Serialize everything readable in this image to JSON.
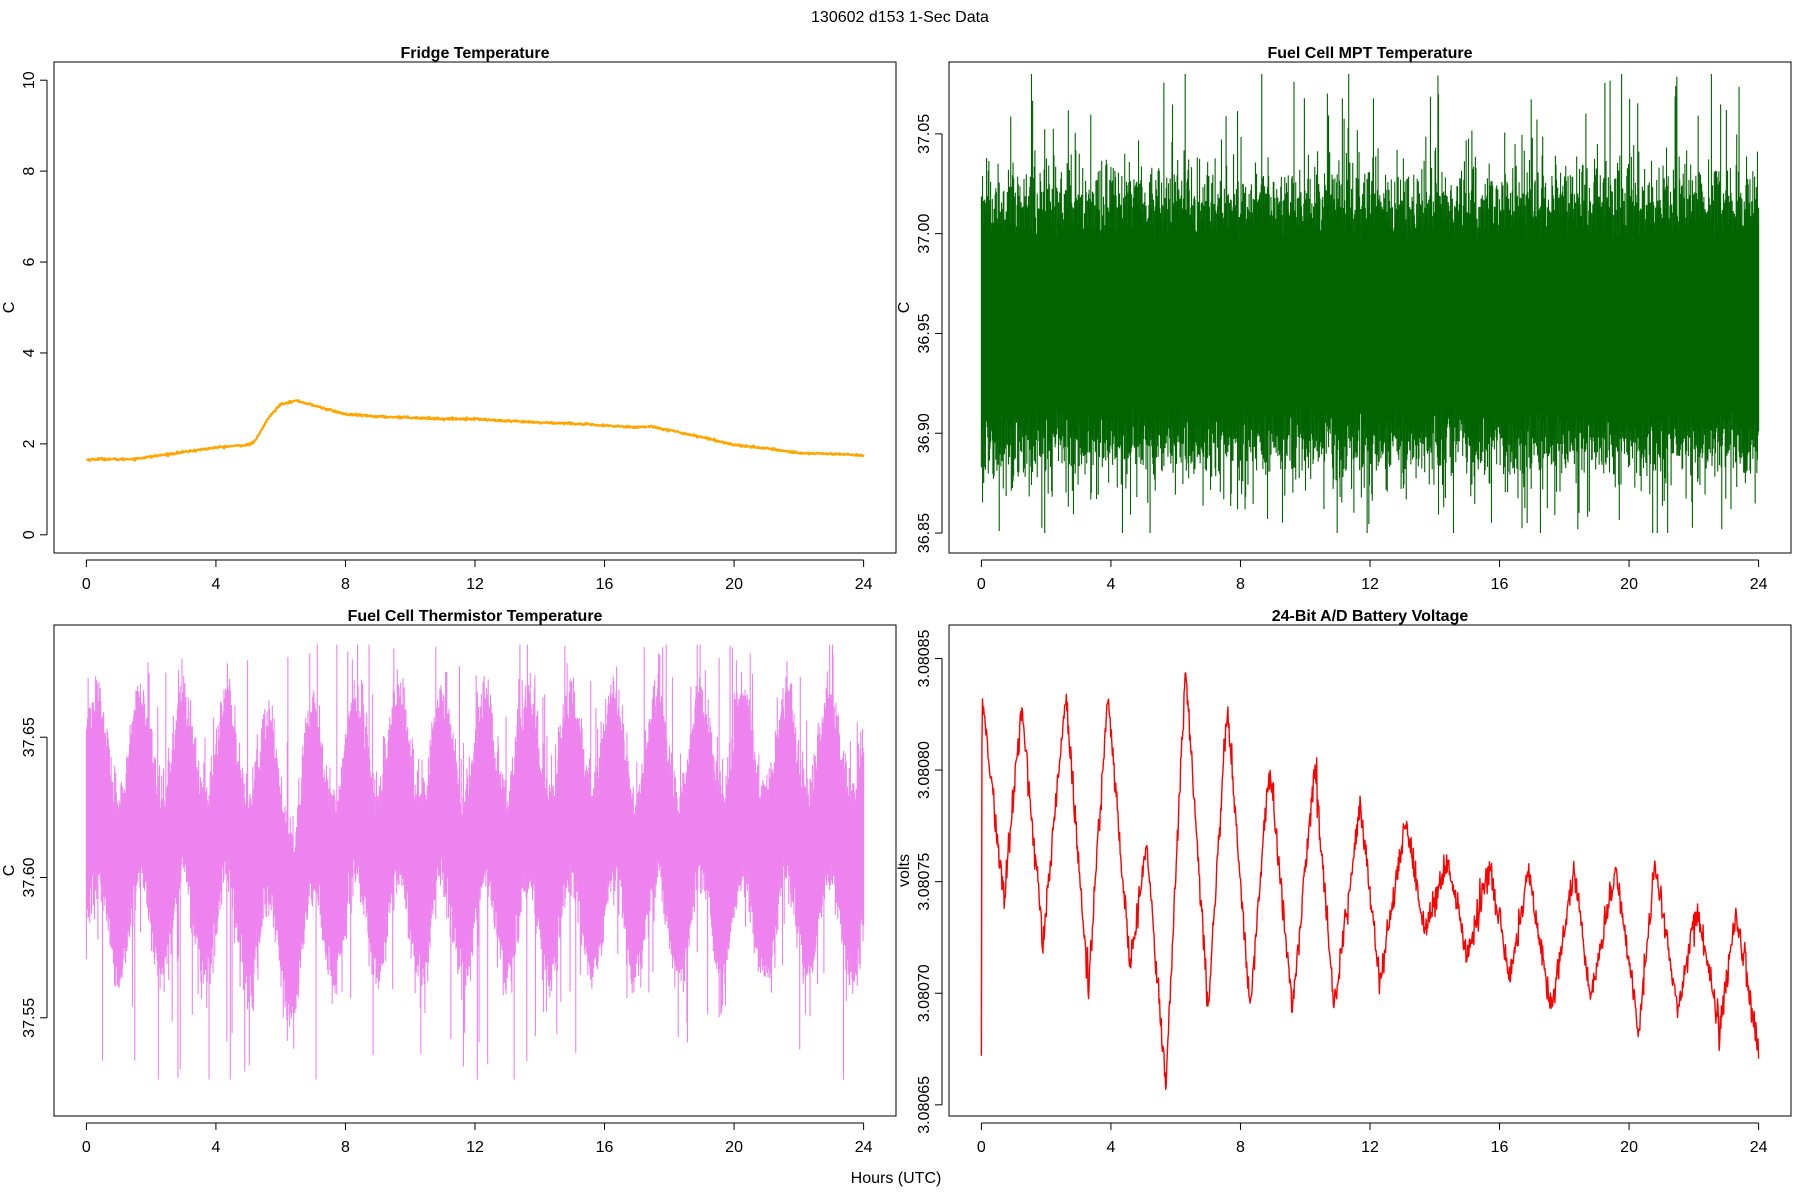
{
  "figure": {
    "title": "130602   d153   1-Sec Data",
    "shared_xlabel": "Hours (UTC)"
  },
  "chart_data": [
    {
      "id": "fridge",
      "type": "line",
      "title": "Fridge Temperature",
      "xlabel": "",
      "ylabel": "C",
      "color": "#ffa500",
      "noise": 0.012,
      "xlim": [
        -1,
        25
      ],
      "ylim": [
        -0.4,
        10.4
      ],
      "xticks": [
        0,
        4,
        8,
        12,
        16,
        20,
        24
      ],
      "yticks": [
        0,
        2,
        4,
        6,
        8,
        10
      ],
      "ytick_labels": [
        "0",
        "2",
        "4",
        "6",
        "8",
        "10"
      ],
      "series": [
        {
          "name": "Fridge Temperature",
          "x": [
            0,
            0.5,
            1,
            1.5,
            2,
            3,
            4,
            5,
            5.2,
            5.6,
            6,
            6.5,
            7,
            8,
            9,
            10,
            11,
            12,
            13,
            14,
            15,
            16,
            17,
            17.5,
            18,
            19,
            20,
            21,
            22,
            23,
            24
          ],
          "y": [
            1.65,
            1.67,
            1.66,
            1.67,
            1.72,
            1.82,
            1.92,
            1.98,
            2.05,
            2.55,
            2.88,
            2.95,
            2.85,
            2.65,
            2.6,
            2.58,
            2.55,
            2.55,
            2.5,
            2.47,
            2.45,
            2.4,
            2.37,
            2.38,
            2.3,
            2.15,
            1.98,
            1.9,
            1.8,
            1.78,
            1.75
          ]
        }
      ]
    },
    {
      "id": "mpt",
      "type": "line",
      "title": "Fuel Cell MPT Temperature",
      "xlabel": "",
      "ylabel": "C",
      "color": "#006400",
      "xlim": [
        -1,
        25
      ],
      "ylim": [
        36.84,
        37.086
      ],
      "xticks": [
        0,
        4,
        8,
        12,
        16,
        20,
        24
      ],
      "yticks": [
        36.85,
        36.9,
        36.95,
        37.0,
        37.05
      ],
      "ytick_labels": [
        "36.85",
        "36.90",
        "36.95",
        "37.00",
        "37.05"
      ],
      "band": {
        "center": 36.955,
        "core_half_width": 0.055,
        "spike_min": 36.85,
        "spike_max": 37.08
      }
    },
    {
      "id": "thermistor",
      "type": "line",
      "title": "Fuel Cell Thermistor Temperature",
      "xlabel": "",
      "ylabel": "C",
      "color": "#ee82ee",
      "xlim": [
        -1,
        25
      ],
      "ylim": [
        37.515,
        37.69
      ],
      "xticks": [
        0,
        4,
        8,
        12,
        16,
        20,
        24
      ],
      "yticks": [
        37.55,
        37.6,
        37.65
      ],
      "ytick_labels": [
        "37.55",
        "37.60",
        "37.65"
      ],
      "band": {
        "mean": 37.615,
        "cycle_hours": 1.33,
        "osc_amplitude": 0.018,
        "core_half_width": 0.028,
        "spike_min": 37.528,
        "spike_max": 37.683,
        "dip_hour": 6.2,
        "dip_depth": 0.015
      }
    },
    {
      "id": "battery",
      "type": "line",
      "title": "24-Bit A/D Battery Voltage",
      "xlabel": "",
      "ylabel": "volts",
      "color": "#ff0000",
      "noise": 3.5e-06,
      "xlim": [
        -1,
        25
      ],
      "ylim": [
        3.080645,
        3.080865
      ],
      "xticks": [
        0,
        4,
        8,
        12,
        16,
        20,
        24
      ],
      "yticks": [
        3.08065,
        3.0807,
        3.08075,
        3.0808,
        3.08085
      ],
      "ytick_labels": [
        "3.08065",
        "3.08070",
        "3.08075",
        "3.08080",
        "3.08085"
      ],
      "series": [
        {
          "name": "Battery Voltage",
          "x": [
            0,
            0.02,
            0.7,
            1.25,
            1.9,
            2.6,
            3.3,
            3.9,
            4.6,
            5.1,
            5.7,
            6.3,
            7.0,
            7.6,
            8.3,
            8.9,
            9.6,
            10.3,
            10.9,
            11.7,
            12.3,
            13.1,
            13.7,
            14.4,
            15.0,
            15.7,
            16.3,
            16.9,
            17.6,
            18.3,
            18.8,
            19.6,
            20.3,
            20.8,
            21.5,
            22.1,
            22.8,
            23.3,
            24.0
          ],
          "y": [
            3.080672,
            3.080834,
            3.080741,
            3.080829,
            3.080721,
            3.080833,
            3.080704,
            3.080832,
            3.080712,
            3.080767,
            3.080657,
            3.080847,
            3.080693,
            3.080828,
            3.080693,
            3.080802,
            3.080693,
            3.080802,
            3.080693,
            3.080786,
            3.080704,
            3.080775,
            3.080728,
            3.080759,
            3.080716,
            3.080758,
            3.080705,
            3.080755,
            3.080692,
            3.080756,
            3.080698,
            3.080756,
            3.080682,
            3.080759,
            3.080692,
            3.080738,
            3.080684,
            3.080737,
            3.080675
          ]
        }
      ]
    }
  ]
}
